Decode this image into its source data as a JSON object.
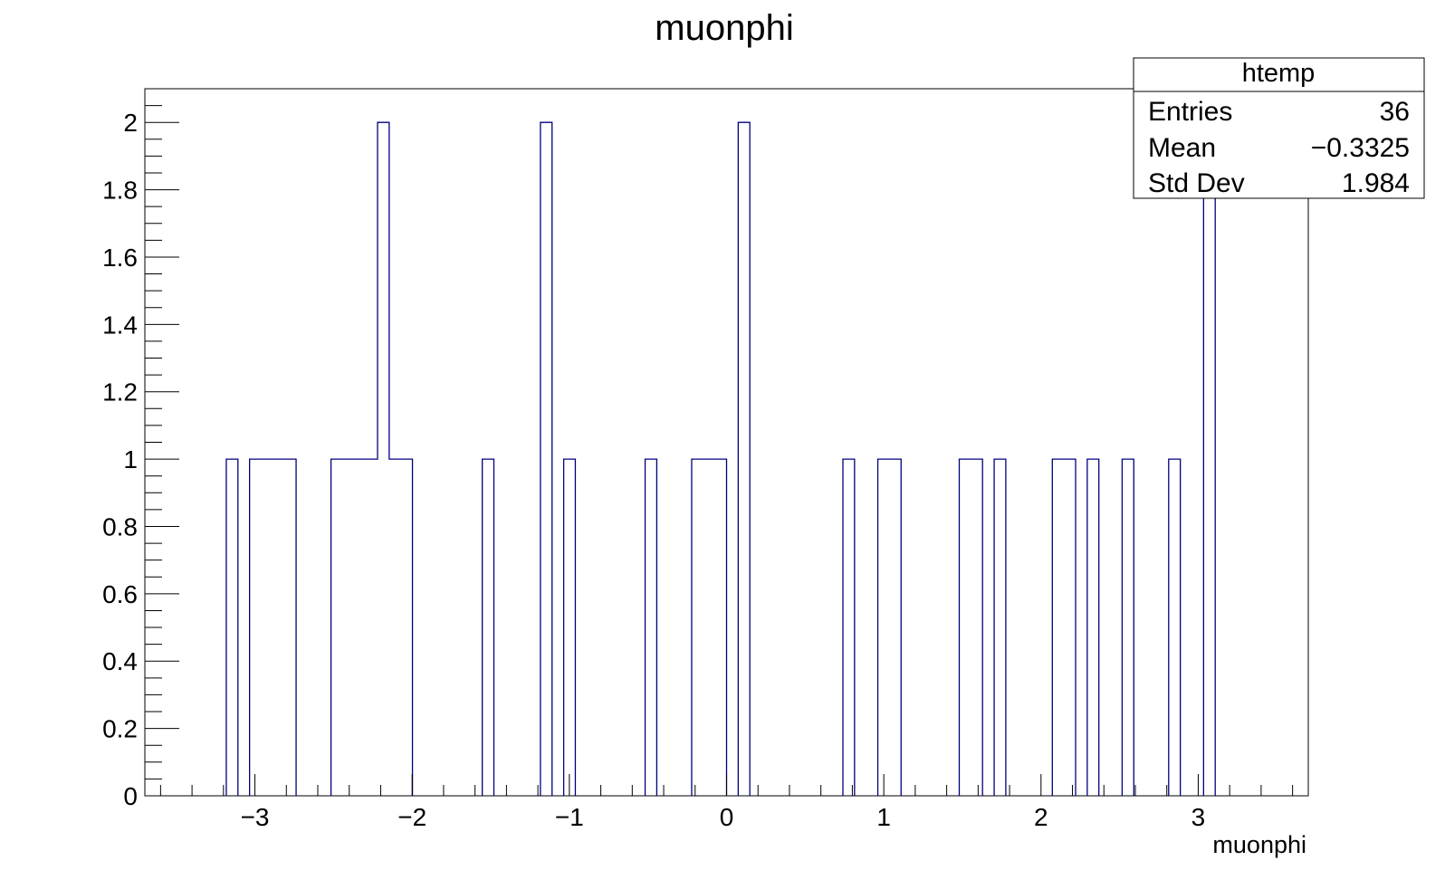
{
  "chart_data": {
    "type": "histogram",
    "title": "muonphi",
    "xlabel": "muonphi",
    "ylabel": "",
    "xlim": [
      -3.7,
      3.7
    ],
    "ylim": [
      0,
      2.1
    ],
    "bin_width": 0.074,
    "color": "#000080",
    "x_ticks": [
      -3,
      -2,
      -1,
      0,
      1,
      2,
      3
    ],
    "x_tick_labels": [
      "−3",
      "−2",
      "−1",
      "0",
      "1",
      "2",
      "3"
    ],
    "y_ticks": [
      0,
      0.2,
      0.4,
      0.6,
      0.8,
      1,
      1.2,
      1.4,
      1.6,
      1.8,
      2
    ],
    "y_tick_labels": [
      "0",
      "0.2",
      "0.4",
      "0.6",
      "0.8",
      "1",
      "1.2",
      "1.4",
      "1.6",
      "1.8",
      "2"
    ],
    "bins": [
      {
        "low": -3.182,
        "count": 1
      },
      {
        "low": -3.034,
        "count": 1
      },
      {
        "low": -2.96,
        "count": 1
      },
      {
        "low": -2.886,
        "count": 1
      },
      {
        "low": -2.812,
        "count": 1
      },
      {
        "low": -2.516,
        "count": 1
      },
      {
        "low": -2.442,
        "count": 1
      },
      {
        "low": -2.368,
        "count": 1
      },
      {
        "low": -2.294,
        "count": 1
      },
      {
        "low": -2.22,
        "count": 2
      },
      {
        "low": -2.146,
        "count": 1
      },
      {
        "low": -2.072,
        "count": 1
      },
      {
        "low": -1.554,
        "count": 1
      },
      {
        "low": -1.184,
        "count": 2
      },
      {
        "low": -1.036,
        "count": 1
      },
      {
        "low": -0.518,
        "count": 1
      },
      {
        "low": -0.222,
        "count": 1
      },
      {
        "low": -0.148,
        "count": 1
      },
      {
        "low": -0.074,
        "count": 1
      },
      {
        "low": 0.074,
        "count": 2
      },
      {
        "low": 0.74,
        "count": 1
      },
      {
        "low": 0.962,
        "count": 1
      },
      {
        "low": 1.036,
        "count": 1
      },
      {
        "low": 1.48,
        "count": 1
      },
      {
        "low": 1.554,
        "count": 1
      },
      {
        "low": 1.702,
        "count": 1
      },
      {
        "low": 2.072,
        "count": 1
      },
      {
        "low": 2.146,
        "count": 1
      },
      {
        "low": 2.294,
        "count": 1
      },
      {
        "low": 2.516,
        "count": 1
      },
      {
        "low": 2.812,
        "count": 1
      },
      {
        "low": 3.034,
        "count": 2
      }
    ]
  },
  "stats_box": {
    "title": "htemp",
    "rows": [
      {
        "label": "Entries",
        "value": "36"
      },
      {
        "label": "Mean",
        "value": "−0.3325"
      },
      {
        "label": "Std Dev",
        "value": "1.984"
      }
    ]
  }
}
